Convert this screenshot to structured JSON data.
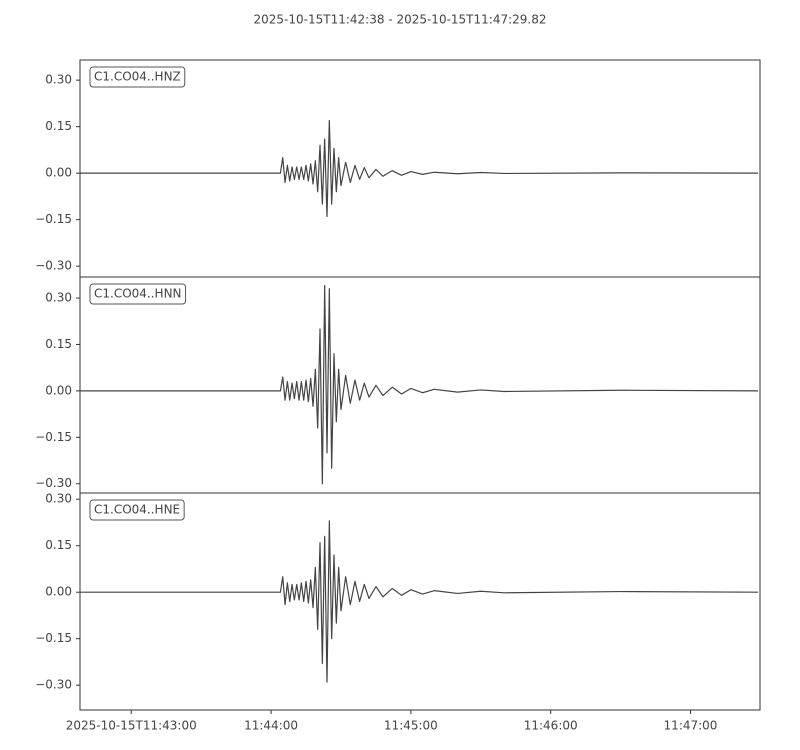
{
  "chart_data": [
    {
      "type": "line",
      "title": "2025-10-15T11:42:38  -  2025-10-15T11:47:29.82",
      "x": [
        "2025-10-15T11:42:38",
        "2025-10-15T11:44:04",
        "2025-10-15T11:44:05",
        "2025-10-15T11:44:06",
        "2025-10-15T11:44:07",
        "2025-10-15T11:44:08",
        "2025-10-15T11:44:09",
        "2025-10-15T11:44:10",
        "2025-10-15T11:44:11",
        "2025-10-15T11:44:12",
        "2025-10-15T11:44:13",
        "2025-10-15T11:44:14",
        "2025-10-15T11:44:15",
        "2025-10-15T11:44:16",
        "2025-10-15T11:44:17",
        "2025-10-15T11:44:18",
        "2025-10-15T11:44:19",
        "2025-10-15T11:44:20",
        "2025-10-15T11:44:21",
        "2025-10-15T11:44:22",
        "2025-10-15T11:44:23",
        "2025-10-15T11:44:24",
        "2025-10-15T11:44:25",
        "2025-10-15T11:44:26",
        "2025-10-15T11:44:27",
        "2025-10-15T11:44:28",
        "2025-10-15T11:44:29",
        "2025-10-15T11:44:30",
        "2025-10-15T11:44:32",
        "2025-10-15T11:44:34",
        "2025-10-15T11:44:36",
        "2025-10-15T11:44:38",
        "2025-10-15T11:44:40",
        "2025-10-15T11:44:42",
        "2025-10-15T11:44:45",
        "2025-10-15T11:44:48",
        "2025-10-15T11:44:52",
        "2025-10-15T11:44:56",
        "2025-10-15T11:45:00",
        "2025-10-15T11:45:05",
        "2025-10-15T11:45:10",
        "2025-10-15T11:45:20",
        "2025-10-15T11:45:30",
        "2025-10-15T11:45:40",
        "2025-10-15T11:46:30",
        "2025-10-15T11:47:29"
      ],
      "series": [
        {
          "name": "C1.CO04..HNZ",
          "color": "#444444",
          "values": [
            0,
            0,
            0.05,
            -0.03,
            0.025,
            -0.025,
            0.02,
            -0.02,
            0.02,
            -0.02,
            0.02,
            -0.02,
            0.025,
            -0.025,
            0.03,
            -0.035,
            0.04,
            -0.06,
            0.09,
            -0.1,
            0.11,
            -0.14,
            0.17,
            -0.1,
            0.08,
            -0.06,
            0.05,
            -0.04,
            0.035,
            -0.03,
            0.025,
            -0.02,
            0.018,
            -0.015,
            0.012,
            -0.01,
            0.008,
            -0.007,
            0.005,
            -0.004,
            0.003,
            -0.002,
            0.002,
            -0.001,
            0.001,
            0
          ]
        }
      ],
      "xlim": [
        "2025-10-15T11:42:38",
        "2025-10-15T11:47:29.82"
      ],
      "ylim": [
        -0.335,
        0.365
      ],
      "yticks": [
        {
          "value": 0.3,
          "label": "0.30"
        },
        {
          "value": 0.15,
          "label": "0.15"
        },
        {
          "value": 0,
          "label": "0.00"
        },
        {
          "value": -0.15,
          "label": "−0.15"
        },
        {
          "value": -0.3,
          "label": "−0.30"
        }
      ]
    },
    {
      "type": "line",
      "x": [
        "2025-10-15T11:42:38",
        "2025-10-15T11:44:04",
        "2025-10-15T11:44:05",
        "2025-10-15T11:44:06",
        "2025-10-15T11:44:07",
        "2025-10-15T11:44:08",
        "2025-10-15T11:44:09",
        "2025-10-15T11:44:10",
        "2025-10-15T11:44:11",
        "2025-10-15T11:44:12",
        "2025-10-15T11:44:13",
        "2025-10-15T11:44:14",
        "2025-10-15T11:44:15",
        "2025-10-15T11:44:16",
        "2025-10-15T11:44:17",
        "2025-10-15T11:44:18",
        "2025-10-15T11:44:19",
        "2025-10-15T11:44:20",
        "2025-10-15T11:44:21",
        "2025-10-15T11:44:22",
        "2025-10-15T11:44:23",
        "2025-10-15T11:44:24",
        "2025-10-15T11:44:25",
        "2025-10-15T11:44:26",
        "2025-10-15T11:44:27",
        "2025-10-15T11:44:28",
        "2025-10-15T11:44:29",
        "2025-10-15T11:44:30",
        "2025-10-15T11:44:32",
        "2025-10-15T11:44:34",
        "2025-10-15T11:44:36",
        "2025-10-15T11:44:38",
        "2025-10-15T11:44:40",
        "2025-10-15T11:44:42",
        "2025-10-15T11:44:45",
        "2025-10-15T11:44:48",
        "2025-10-15T11:44:52",
        "2025-10-15T11:44:56",
        "2025-10-15T11:45:00",
        "2025-10-15T11:45:05",
        "2025-10-15T11:45:10",
        "2025-10-15T11:45:20",
        "2025-10-15T11:45:30",
        "2025-10-15T11:45:40",
        "2025-10-15T11:46:30",
        "2025-10-15T11:47:29"
      ],
      "series": [
        {
          "name": "C1.CO04..HNN",
          "color": "#444444",
          "values": [
            0,
            0,
            0.045,
            -0.03,
            0.03,
            -0.03,
            0.025,
            -0.025,
            0.03,
            -0.03,
            0.03,
            -0.03,
            0.035,
            -0.035,
            0.04,
            -0.05,
            0.07,
            -0.12,
            0.2,
            -0.3,
            0.34,
            -0.2,
            0.33,
            -0.25,
            0.12,
            -0.1,
            0.07,
            -0.06,
            0.05,
            -0.04,
            0.035,
            -0.03,
            0.025,
            -0.02,
            0.018,
            -0.015,
            0.012,
            -0.01,
            0.008,
            -0.006,
            0.005,
            -0.004,
            0.003,
            -0.002,
            0.002,
            0
          ]
        }
      ],
      "xlim": [
        "2025-10-15T11:42:38",
        "2025-10-15T11:47:29.82"
      ],
      "ylim": [
        -0.33,
        0.368
      ],
      "yticks": [
        {
          "value": 0.3,
          "label": "0.30"
        },
        {
          "value": 0.15,
          "label": "0.15"
        },
        {
          "value": 0,
          "label": "0.00"
        },
        {
          "value": -0.15,
          "label": "−0.15"
        },
        {
          "value": -0.3,
          "label": "−0.30"
        }
      ]
    },
    {
      "type": "line",
      "x": [
        "2025-10-15T11:42:38",
        "2025-10-15T11:44:04",
        "2025-10-15T11:44:05",
        "2025-10-15T11:44:06",
        "2025-10-15T11:44:07",
        "2025-10-15T11:44:08",
        "2025-10-15T11:44:09",
        "2025-10-15T11:44:10",
        "2025-10-15T11:44:11",
        "2025-10-15T11:44:12",
        "2025-10-15T11:44:13",
        "2025-10-15T11:44:14",
        "2025-10-15T11:44:15",
        "2025-10-15T11:44:16",
        "2025-10-15T11:44:17",
        "2025-10-15T11:44:18",
        "2025-10-15T11:44:19",
        "2025-10-15T11:44:20",
        "2025-10-15T11:44:21",
        "2025-10-15T11:44:22",
        "2025-10-15T11:44:23",
        "2025-10-15T11:44:24",
        "2025-10-15T11:44:25",
        "2025-10-15T11:44:26",
        "2025-10-15T11:44:27",
        "2025-10-15T11:44:28",
        "2025-10-15T11:44:29",
        "2025-10-15T11:44:30",
        "2025-10-15T11:44:32",
        "2025-10-15T11:44:34",
        "2025-10-15T11:44:36",
        "2025-10-15T11:44:38",
        "2025-10-15T11:44:40",
        "2025-10-15T11:44:42",
        "2025-10-15T11:44:45",
        "2025-10-15T11:44:48",
        "2025-10-15T11:44:52",
        "2025-10-15T11:44:56",
        "2025-10-15T11:45:00",
        "2025-10-15T11:45:05",
        "2025-10-15T11:45:10",
        "2025-10-15T11:45:20",
        "2025-10-15T11:45:30",
        "2025-10-15T11:45:40",
        "2025-10-15T11:46:30",
        "2025-10-15T11:47:29"
      ],
      "series": [
        {
          "name": "C1.CO04..HNE",
          "color": "#444444",
          "values": [
            0,
            0,
            0.05,
            -0.04,
            0.03,
            -0.03,
            0.025,
            -0.025,
            0.025,
            -0.025,
            0.03,
            -0.03,
            0.035,
            -0.035,
            0.04,
            -0.05,
            0.08,
            -0.12,
            0.16,
            -0.23,
            0.18,
            -0.29,
            0.23,
            -0.15,
            0.12,
            -0.1,
            0.08,
            -0.06,
            0.05,
            -0.04,
            0.035,
            -0.03,
            0.025,
            -0.02,
            0.018,
            -0.015,
            0.012,
            -0.01,
            0.008,
            -0.006,
            0.005,
            -0.004,
            0.003,
            -0.002,
            0.002,
            0
          ]
        }
      ],
      "xlim": [
        "2025-10-15T11:42:38",
        "2025-10-15T11:47:29.82"
      ],
      "ylim": [
        -0.38,
        0.32
      ],
      "yticks": [
        {
          "value": 0.3,
          "label": "0.30"
        },
        {
          "value": 0.15,
          "label": "0.15"
        },
        {
          "value": 0,
          "label": "0.00"
        },
        {
          "value": -0.15,
          "label": "−0.15"
        },
        {
          "value": -0.3,
          "label": "−0.30"
        }
      ],
      "xticks": [
        "2025-10-15T11:43:00",
        {
          "value": "2025-10-15T11:44:00",
          "label": "11:44:00"
        },
        {
          "value": "2025-10-15T11:45:00",
          "label": "11:45:00"
        },
        {
          "value": "2025-10-15T11:46:00",
          "label": "11:46:00"
        },
        {
          "value": "2025-10-15T11:47:00",
          "label": "11:47:00"
        }
      ]
    }
  ]
}
